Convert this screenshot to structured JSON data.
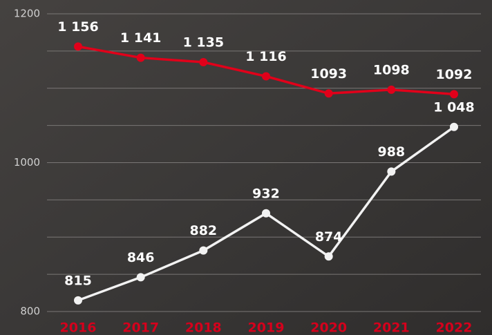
{
  "chart_data": {
    "type": "line",
    "categories": [
      "2016",
      "2017",
      "2018",
      "2019",
      "2020",
      "2021",
      "2022"
    ],
    "series": [
      {
        "color": "#e1001a",
        "values": [
          1156,
          1141,
          1135,
          1116,
          1093,
          1098,
          1092
        ],
        "value_labels": [
          "1 156",
          "1 141",
          "1 135",
          "1 116",
          "1093",
          "1098",
          "1092"
        ]
      },
      {
        "color": "#f2f2f2",
        "values": [
          815,
          846,
          882,
          932,
          874,
          988,
          1048
        ],
        "value_labels": [
          "815",
          "846",
          "882",
          "932",
          "874",
          "988",
          "1 048"
        ]
      }
    ],
    "ylim": [
      800,
      1200
    ],
    "yticks": [
      800,
      1000,
      1200
    ],
    "grid": true,
    "grid_lines": [
      800,
      850,
      900,
      950,
      1000,
      1050,
      1100,
      1150,
      1200
    ],
    "category_color": "#d4001c"
  }
}
